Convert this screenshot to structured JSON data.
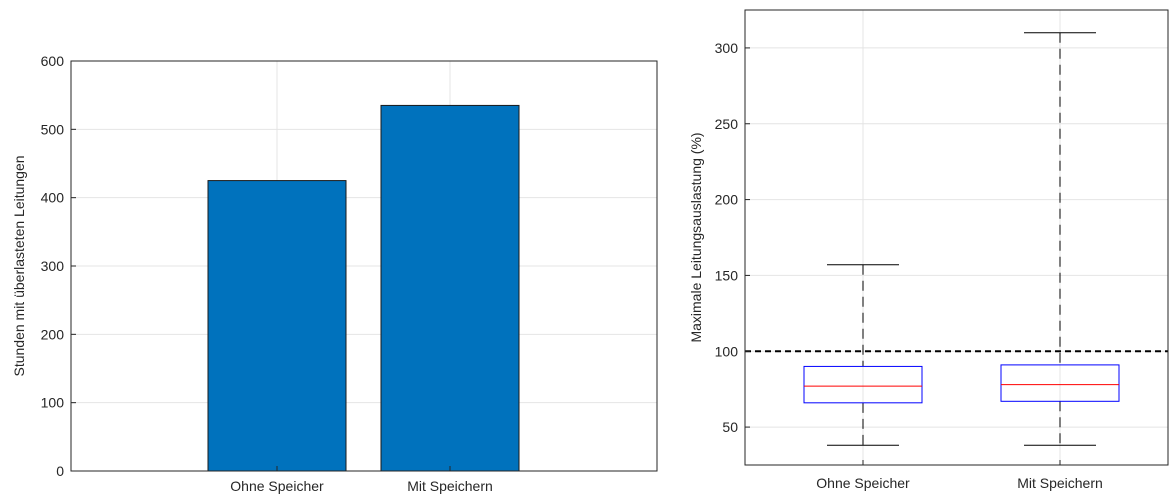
{
  "chart_data": [
    {
      "type": "bar",
      "categories": [
        "Ohne Speicher",
        "Mit Speichern"
      ],
      "values": [
        425,
        535
      ],
      "ylabel": "Stunden mit überlasteten Leitungen",
      "ylim": [
        0,
        600
      ],
      "yticks": [
        0,
        100,
        200,
        300,
        400,
        500,
        600
      ],
      "grid": true,
      "colors": {
        "bar": "#0072BD",
        "bar_edge": "#1a1a1a"
      }
    },
    {
      "type": "box",
      "categories": [
        "Ohne Speicher",
        "Mit Speichern"
      ],
      "boxes": [
        {
          "category": "Ohne Speicher",
          "min": 38,
          "q1": 66,
          "median": 77,
          "q3": 90,
          "max": 157
        },
        {
          "category": "Mit Speichern",
          "min": 38,
          "q1": 67,
          "median": 78,
          "q3": 91,
          "max": 310
        }
      ],
      "ylabel": "Maximale Leitungsauslastung (%)",
      "ylim": [
        25,
        325
      ],
      "yticks": [
        50,
        100,
        150,
        200,
        250,
        300
      ],
      "reference_line": 100,
      "grid": true,
      "colors": {
        "box": "#0000ff",
        "median": "#ff0000",
        "whisker": "#000000",
        "reference": "#000000"
      }
    }
  ]
}
